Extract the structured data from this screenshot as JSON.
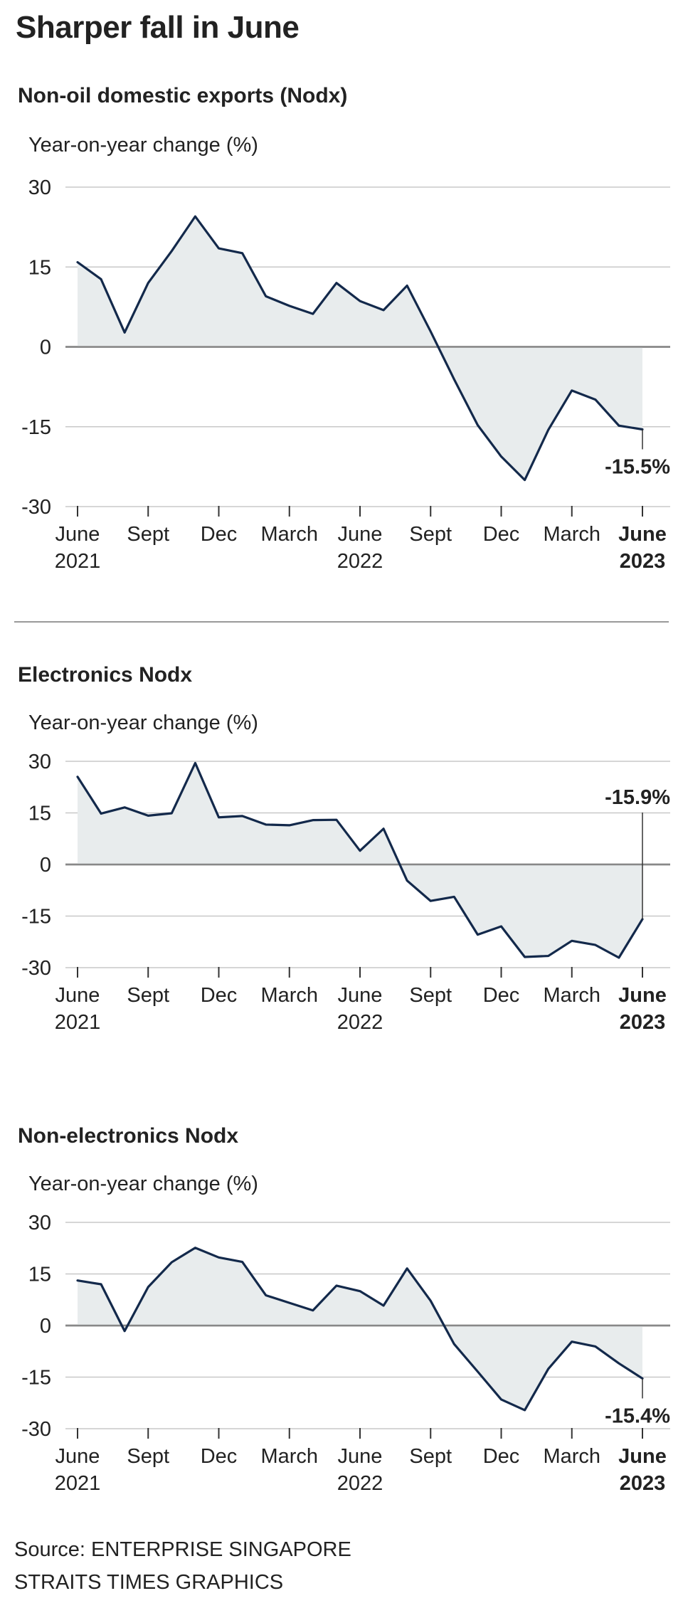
{
  "title": "Sharper fall in June",
  "source_line": "Source: ENTERPRISE SINGAPORE",
  "credit_line": "STRAITS TIMES GRAPHICS",
  "colors": {
    "line": "#13294b",
    "area": "#e8eced",
    "grid": "#c8c8c8",
    "zero": "#888888"
  },
  "chart_data": [
    {
      "type": "area",
      "title": "Non-oil domestic exports (Nodx)",
      "ylabel": "Year-on-year change (%)",
      "xlabel": "",
      "ylim": [
        -30,
        30
      ],
      "yticks": [
        "30",
        "15",
        "0",
        "-15",
        "-30"
      ],
      "ytick_values": [
        30,
        15,
        0,
        -15,
        -30
      ],
      "xtick_labels": [
        {
          "index": 0,
          "line1": "June",
          "line2": "2021",
          "bold": false
        },
        {
          "index": 3,
          "line1": "Sept",
          "line2": "",
          "bold": false
        },
        {
          "index": 6,
          "line1": "Dec",
          "line2": "",
          "bold": false
        },
        {
          "index": 9,
          "line1": "March",
          "line2": "",
          "bold": false
        },
        {
          "index": 12,
          "line1": "June",
          "line2": "2022",
          "bold": false
        },
        {
          "index": 15,
          "line1": "Sept",
          "line2": "",
          "bold": false
        },
        {
          "index": 18,
          "line1": "Dec",
          "line2": "",
          "bold": false
        },
        {
          "index": 21,
          "line1": "March",
          "line2": "",
          "bold": false
        },
        {
          "index": 24,
          "line1": "June",
          "line2": "2023",
          "bold": true
        }
      ],
      "values": [
        15.9,
        12.7,
        2.7,
        12.0,
        18.0,
        24.5,
        18.5,
        17.6,
        9.5,
        7.7,
        6.2,
        12.0,
        8.6,
        6.9,
        11.5,
        2.9,
        -6.1,
        -14.7,
        -20.6,
        -25.0,
        -15.6,
        -8.2,
        -9.9,
        -14.8,
        -15.5
      ],
      "callout": "-15.5%",
      "callout_side": "below"
    },
    {
      "type": "area",
      "title": "Electronics Nodx",
      "ylabel": "Year-on-year change (%)",
      "xlabel": "",
      "ylim": [
        -30,
        30
      ],
      "yticks": [
        "30",
        "15",
        "0",
        "-15",
        "-30"
      ],
      "ytick_values": [
        30,
        15,
        0,
        -15,
        -30
      ],
      "xtick_labels": [
        {
          "index": 0,
          "line1": "June",
          "line2": "2021",
          "bold": false
        },
        {
          "index": 3,
          "line1": "Sept",
          "line2": "",
          "bold": false
        },
        {
          "index": 6,
          "line1": "Dec",
          "line2": "",
          "bold": false
        },
        {
          "index": 9,
          "line1": "March",
          "line2": "",
          "bold": false
        },
        {
          "index": 12,
          "line1": "June",
          "line2": "2022",
          "bold": false
        },
        {
          "index": 15,
          "line1": "Sept",
          "line2": "",
          "bold": false
        },
        {
          "index": 18,
          "line1": "Dec",
          "line2": "",
          "bold": false
        },
        {
          "index": 21,
          "line1": "March",
          "line2": "",
          "bold": false
        },
        {
          "index": 24,
          "line1": "June",
          "line2": "2023",
          "bold": true
        }
      ],
      "values": [
        25.5,
        14.8,
        16.6,
        14.2,
        14.9,
        29.5,
        13.7,
        14.1,
        11.6,
        11.4,
        12.9,
        13.0,
        4.0,
        10.4,
        -4.7,
        -10.6,
        -9.4,
        -20.4,
        -18.0,
        -26.9,
        -26.6,
        -22.2,
        -23.4,
        -27.1,
        -15.9
      ],
      "callout": "-15.9%",
      "callout_side": "above"
    },
    {
      "type": "area",
      "title": "Non-electronics Nodx",
      "ylabel": "Year-on-year change (%)",
      "xlabel": "",
      "ylim": [
        -30,
        30
      ],
      "yticks": [
        "30",
        "15",
        "0",
        "-15",
        "-30"
      ],
      "ytick_values": [
        30,
        15,
        0,
        -15,
        -30
      ],
      "xtick_labels": [
        {
          "index": 0,
          "line1": "June",
          "line2": "2021",
          "bold": false
        },
        {
          "index": 3,
          "line1": "Sept",
          "line2": "",
          "bold": false
        },
        {
          "index": 6,
          "line1": "Dec",
          "line2": "",
          "bold": false
        },
        {
          "index": 9,
          "line1": "March",
          "line2": "",
          "bold": false
        },
        {
          "index": 12,
          "line1": "June",
          "line2": "2022",
          "bold": false
        },
        {
          "index": 15,
          "line1": "Sept",
          "line2": "",
          "bold": false
        },
        {
          "index": 18,
          "line1": "Dec",
          "line2": "",
          "bold": false
        },
        {
          "index": 21,
          "line1": "March",
          "line2": "",
          "bold": false
        },
        {
          "index": 24,
          "line1": "June",
          "line2": "2023",
          "bold": true
        }
      ],
      "values": [
        13.1,
        12.0,
        -1.6,
        11.2,
        18.4,
        22.6,
        19.8,
        18.5,
        8.8,
        6.6,
        4.4,
        11.6,
        10.0,
        5.8,
        16.6,
        7.2,
        -5.4,
        -13.4,
        -21.5,
        -24.6,
        -12.6,
        -4.7,
        -6.1,
        -11.0,
        -15.4
      ],
      "callout": "-15.4%",
      "callout_side": "below"
    }
  ]
}
